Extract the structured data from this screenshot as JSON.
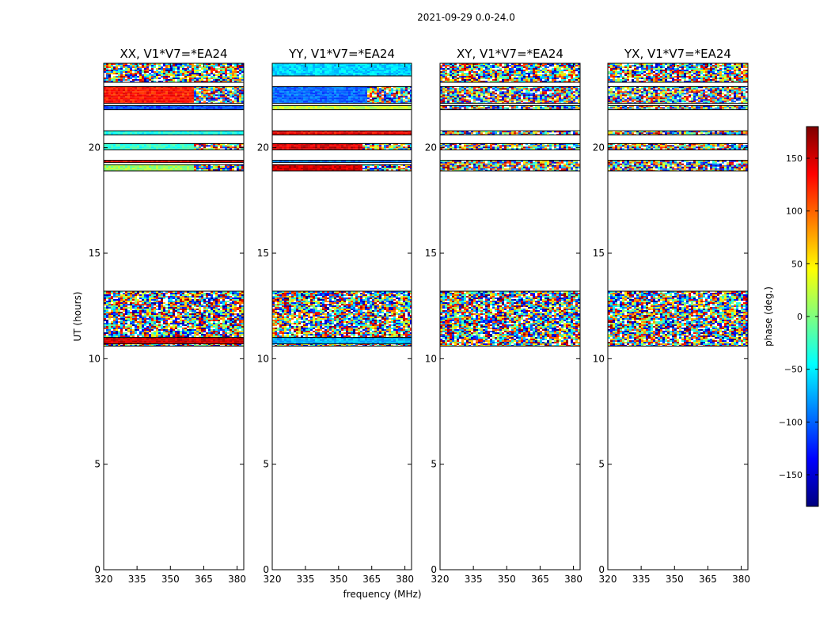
{
  "figure": {
    "suptitle": "2021-09-29 0.0-24.0",
    "xlabel": "frequency (MHz)",
    "ylabel": "UT (hours)"
  },
  "colorbar": {
    "label": "phase (deg.)",
    "range": [
      -180,
      180
    ],
    "ticks": [
      150,
      100,
      50,
      0,
      -50,
      -100,
      -150
    ],
    "tick_labels": [
      "150",
      "100",
      "50",
      "0",
      "−50",
      "−100",
      "−150"
    ],
    "colormap": [
      "#00007f",
      "#0000ff",
      "#007fff",
      "#00ffff",
      "#7fff7f",
      "#ffff00",
      "#ff7f00",
      "#ff0000",
      "#7f0000"
    ]
  },
  "chart_data": [
    {
      "type": "heatmap",
      "title": "XX, V1*V7=*EA24",
      "xlim": [
        320,
        383
      ],
      "ylim": [
        0,
        24
      ],
      "xticks": [
        320,
        335,
        350,
        365,
        380
      ],
      "yticks": [
        0,
        5,
        10,
        15,
        20
      ],
      "xlabel": "",
      "ylabel": "UT (hours)",
      "value": "phase (deg.)",
      "bands": [
        {
          "t": [
            23.1,
            24.0
          ],
          "phase": "noise"
        },
        {
          "t": [
            22.1,
            22.9
          ],
          "phase": 130,
          "noisy_above_mhz": 360
        },
        {
          "t": [
            21.8,
            22.0
          ],
          "phase": -110
        },
        {
          "t": [
            20.6,
            20.8
          ],
          "phase": -40
        },
        {
          "t": [
            19.9,
            20.2
          ],
          "phase": -30,
          "noisy_above_mhz": 360
        },
        {
          "t": [
            19.3,
            19.4
          ],
          "phase": 140
        },
        {
          "t": [
            18.9,
            19.2
          ],
          "phase": 10,
          "noisy_above_mhz": 360
        },
        {
          "t": [
            10.6,
            13.2
          ],
          "phase": "noise"
        },
        {
          "t": [
            10.7,
            11.0
          ],
          "phase": 150
        }
      ]
    },
    {
      "type": "heatmap",
      "title": "YY, V1*V7=*EA24",
      "xlim": [
        320,
        383
      ],
      "ylim": [
        0,
        24
      ],
      "xticks": [
        320,
        335,
        350,
        365,
        380
      ],
      "yticks": [
        0,
        5,
        10,
        15,
        20
      ],
      "xlabel": "frequency (MHz)",
      "ylabel": "",
      "value": "phase (deg.)",
      "bands": [
        {
          "t": [
            23.4,
            24.0
          ],
          "phase": -60
        },
        {
          "t": [
            22.1,
            22.9
          ],
          "phase": -100,
          "noisy_above_mhz": 362
        },
        {
          "t": [
            21.8,
            22.0
          ],
          "phase": 25
        },
        {
          "t": [
            20.6,
            20.8
          ],
          "phase": 140
        },
        {
          "t": [
            19.9,
            20.2
          ],
          "phase": 150,
          "noisy_above_mhz": 360
        },
        {
          "t": [
            19.3,
            19.4
          ],
          "phase": -90
        },
        {
          "t": [
            18.9,
            19.2
          ],
          "phase": 150,
          "noisy_above_mhz": 360
        },
        {
          "t": [
            10.6,
            13.2
          ],
          "phase": "noise"
        },
        {
          "t": [
            10.7,
            11.0
          ],
          "phase": -70
        }
      ]
    },
    {
      "type": "heatmap",
      "title": "XY, V1*V7=*EA24",
      "xlim": [
        320,
        383
      ],
      "ylim": [
        0,
        24
      ],
      "xticks": [
        320,
        335,
        350,
        365,
        380
      ],
      "yticks": [
        0,
        5,
        10,
        15,
        20
      ],
      "xlabel": "",
      "ylabel": "",
      "value": "phase (deg.)",
      "bands": [
        {
          "t": [
            23.1,
            24.0
          ],
          "phase": "noise"
        },
        {
          "t": [
            22.1,
            22.9
          ],
          "phase": "noise"
        },
        {
          "t": [
            21.8,
            22.0
          ],
          "phase": "noise"
        },
        {
          "t": [
            20.6,
            20.8
          ],
          "phase": "noise"
        },
        {
          "t": [
            19.9,
            20.2
          ],
          "phase": "noise"
        },
        {
          "t": [
            18.9,
            19.4
          ],
          "phase": "noise"
        },
        {
          "t": [
            10.6,
            13.2
          ],
          "phase": "noise"
        }
      ]
    },
    {
      "type": "heatmap",
      "title": "YX, V1*V7=*EA24",
      "xlim": [
        320,
        383
      ],
      "ylim": [
        0,
        24
      ],
      "xticks": [
        320,
        335,
        350,
        365,
        380
      ],
      "yticks": [
        0,
        5,
        10,
        15,
        20
      ],
      "xlabel": "",
      "ylabel": "",
      "value": "phase (deg.)",
      "bands": [
        {
          "t": [
            23.1,
            24.0
          ],
          "phase": "noise"
        },
        {
          "t": [
            22.1,
            22.9
          ],
          "phase": "noise"
        },
        {
          "t": [
            21.8,
            22.0
          ],
          "phase": "noise"
        },
        {
          "t": [
            20.6,
            20.8
          ],
          "phase": "noise"
        },
        {
          "t": [
            19.9,
            20.2
          ],
          "phase": "noise"
        },
        {
          "t": [
            18.9,
            19.4
          ],
          "phase": "noise"
        },
        {
          "t": [
            10.6,
            13.2
          ],
          "phase": "noise"
        }
      ]
    }
  ]
}
